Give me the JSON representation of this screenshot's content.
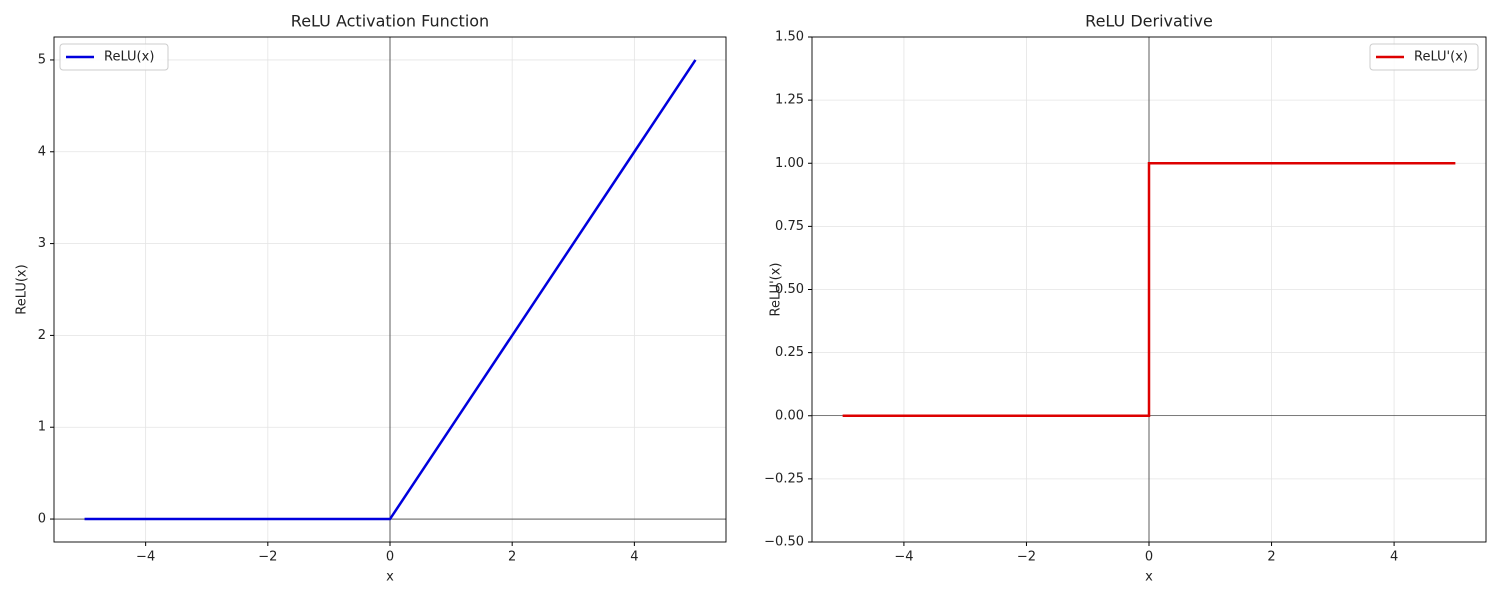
{
  "chart_data": [
    {
      "type": "line",
      "title": "ReLU Activation Function",
      "xlabel": "x",
      "ylabel": "ReLU(x)",
      "x": [
        -5,
        0,
        5
      ],
      "series": [
        {
          "name": "ReLU(x)",
          "color": "#0000dd",
          "values": [
            0,
            0,
            5
          ]
        }
      ],
      "xlim": [
        -5.5,
        5.5
      ],
      "ylim": [
        -0.25,
        5.25
      ],
      "xticks": [
        {
          "value": -4,
          "label": "−4"
        },
        {
          "value": -2,
          "label": "−2"
        },
        0,
        2,
        4
      ],
      "yticks": [
        0,
        1,
        2,
        3,
        4,
        5
      ],
      "axhline": 0,
      "axvline": 0,
      "grid": true,
      "legend": "upper left"
    },
    {
      "type": "line",
      "title": "ReLU Derivative",
      "xlabel": "x",
      "ylabel": "ReLU'(x)",
      "x": [
        -5,
        0,
        0,
        5
      ],
      "series": [
        {
          "name": "ReLU'(x)",
          "color": "#dd0000",
          "values": [
            0,
            0,
            1,
            1
          ]
        }
      ],
      "xlim": [
        -5.5,
        5.5
      ],
      "ylim": [
        -0.5,
        1.5
      ],
      "xticks": [
        {
          "value": -4,
          "label": "−4"
        },
        {
          "value": -2,
          "label": "−2"
        },
        0,
        2,
        4
      ],
      "yticks": [
        {
          "value": -0.5,
          "label": "−0.50"
        },
        {
          "value": -0.25,
          "label": "−0.25"
        },
        {
          "value": 0,
          "label": "0.00"
        },
        {
          "value": 0.25,
          "label": "0.25"
        },
        {
          "value": 0.5,
          "label": "0.50"
        },
        {
          "value": 0.75,
          "label": "0.75"
        },
        {
          "value": 1,
          "label": "1.00"
        },
        {
          "value": 1.25,
          "label": "1.25"
        },
        {
          "value": 1.5,
          "label": "1.50"
        }
      ],
      "axhline": 0,
      "axvline": 0,
      "grid": true,
      "legend": "upper right"
    }
  ]
}
